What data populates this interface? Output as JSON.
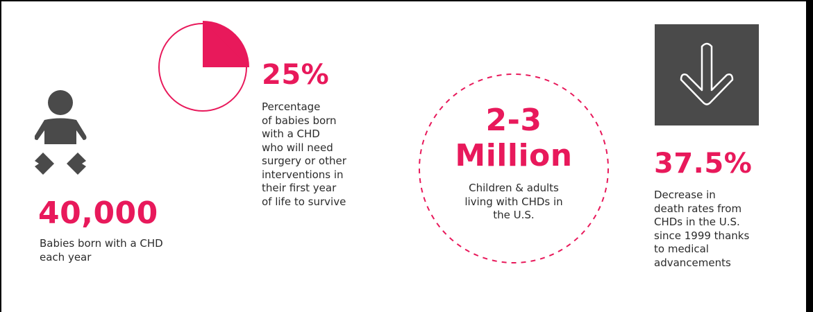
{
  "colors": {
    "accent": "#e8195b",
    "icon_gray": "#4a4a4a",
    "text": "#2b2b2b"
  },
  "stats": [
    {
      "icon": "baby-icon",
      "value": "40,000",
      "description": "Babies born with a CHD\neach year"
    },
    {
      "icon": "pie-quarter-icon",
      "value": "25%",
      "description": "Percentage\nof babies born\nwith a CHD\nwho will need\nsurgery or other\ninterventions in\ntheir first year\nof life to survive",
      "fraction": 0.25
    },
    {
      "icon": "dashed-circle",
      "value_line1": "2-3",
      "value_line2": "Million",
      "description": "Children & adults\nliving with CHDs in\nthe U.S."
    },
    {
      "icon": "down-arrow-icon",
      "value": "37.5%",
      "description": "Decrease in\ndeath rates from\nCHDs in the U.S.\nsince 1999 thanks\nto medical\nadvancements"
    }
  ]
}
